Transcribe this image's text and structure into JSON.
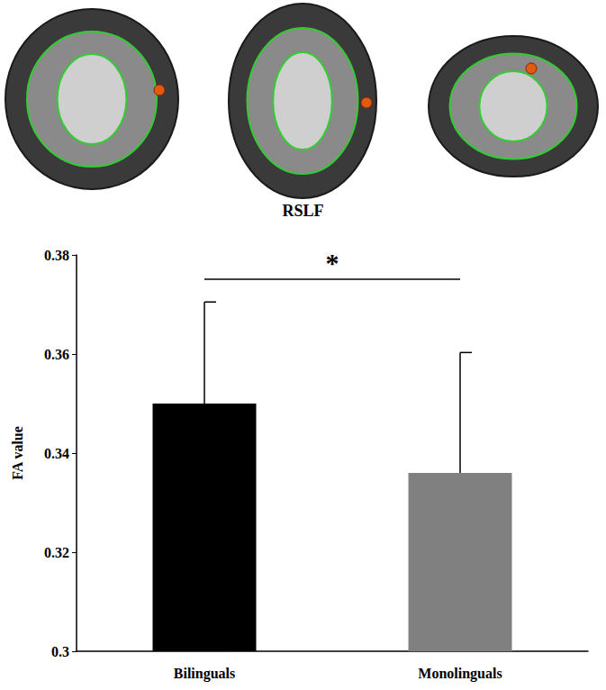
{
  "chart_data": {
    "type": "bar",
    "title": "RSLF",
    "categories": [
      "Bilinguals",
      "Monolinguals"
    ],
    "values": [
      0.35,
      0.336
    ],
    "errors": [
      0.0205,
      0.0243
    ],
    "colors": [
      "#000000",
      "#808080"
    ],
    "ylabel": "FA value",
    "ylim": [
      0.3,
      0.38
    ],
    "yticks": [
      0.3,
      0.32,
      0.34,
      0.36,
      0.38
    ],
    "grid": false,
    "annotations": [
      {
        "text": "*",
        "from": "Bilinguals",
        "to": "Monolinguals"
      }
    ]
  }
}
